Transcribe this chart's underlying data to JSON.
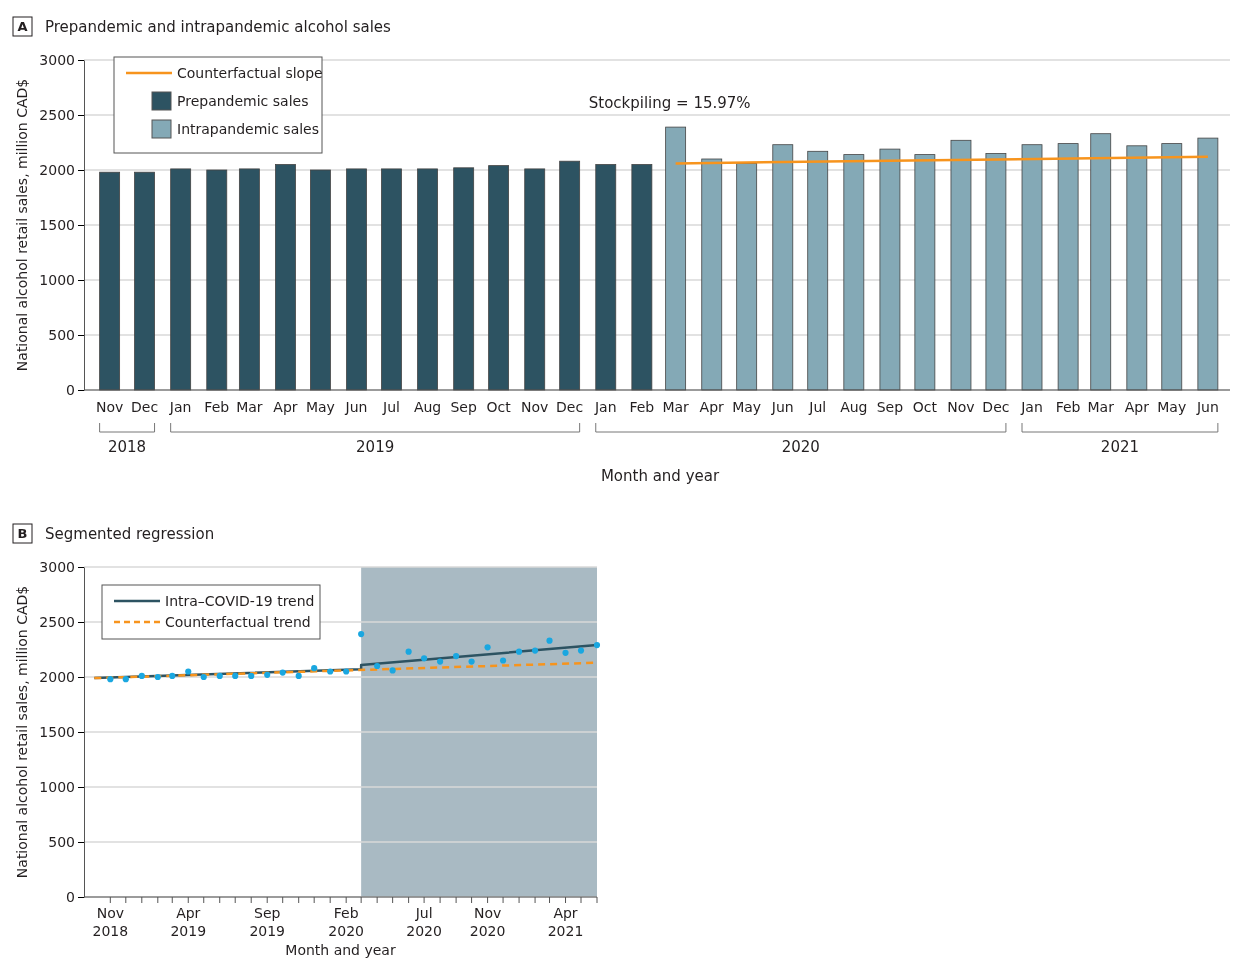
{
  "chart_data": [
    {
      "type": "bar",
      "title": "Prepandemic and intrapandemic alcohol sales",
      "xlabel": "Month and year",
      "ylabel": "National alcohol retail sales, million CAD$",
      "grid": "y",
      "legend": "top left",
      "x": [
        "2018-11",
        "2018-12",
        "2019-01",
        "2019-02",
        "2019-03",
        "2019-04",
        "2019-05",
        "2019-06",
        "2019-07",
        "2019-08",
        "2019-09",
        "2019-10",
        "2019-11",
        "2019-12",
        "2020-01",
        "2020-02",
        "2020-03",
        "2020-04",
        "2020-05",
        "2020-06",
        "2020-07",
        "2020-08",
        "2020-09",
        "2020-10",
        "2020-11",
        "2020-12",
        "2021-01",
        "2021-02",
        "2021-03",
        "2021-04",
        "2021-05",
        "2021-06"
      ],
      "xlim": [
        "2018-10-10",
        "2021-06-20"
      ],
      "xticks": [
        {
          "value": "2018-11",
          "label": "Nov"
        },
        {
          "value": "2018-12",
          "label": "Dec"
        },
        {
          "value": "2019-01",
          "label": "Jan"
        },
        {
          "value": "2019-02",
          "label": "Feb"
        },
        {
          "value": "2019-03",
          "label": "Mar"
        },
        {
          "value": "2019-04",
          "label": "Apr"
        },
        {
          "value": "2019-05",
          "label": "May"
        },
        {
          "value": "2019-06",
          "label": "Jun"
        },
        {
          "value": "2019-07",
          "label": "Jul"
        },
        {
          "value": "2019-08",
          "label": "Aug"
        },
        {
          "value": "2019-09",
          "label": "Sep"
        },
        {
          "value": "2019-10",
          "label": "Oct"
        },
        {
          "value": "2019-11",
          "label": "Nov"
        },
        {
          "value": "2019-12",
          "label": "Dec"
        },
        {
          "value": "2020-01",
          "label": "Jan"
        },
        {
          "value": "2020-02",
          "label": "Feb"
        },
        {
          "value": "2020-03",
          "label": "Mar"
        },
        {
          "value": "2020-04",
          "label": "Apr"
        },
        {
          "value": "2020-05",
          "label": "May"
        },
        {
          "value": "2020-06",
          "label": "Jun"
        },
        {
          "value": "2020-07",
          "label": "Jul"
        },
        {
          "value": "2020-08",
          "label": "Aug"
        },
        {
          "value": "2020-09",
          "label": "Sep"
        },
        {
          "value": "2020-10",
          "label": "Oct"
        },
        {
          "value": "2020-11",
          "label": "Nov"
        },
        {
          "value": "2020-12",
          "label": "Dec"
        },
        {
          "value": "2021-01",
          "label": "Jan"
        },
        {
          "value": "2021-02",
          "label": "Feb"
        },
        {
          "value": "2021-03",
          "label": "Mar"
        },
        {
          "value": "2021-04",
          "label": "Apr"
        },
        {
          "value": "2021-05",
          "label": "May"
        },
        {
          "value": "2021-06",
          "label": "Jun"
        }
      ],
      "ylim": [
        0,
        3000
      ],
      "yticks": [
        0,
        500,
        1000,
        1500,
        2000,
        2500,
        3000
      ],
      "annotations": [
        "A",
        {
          "text": "Stockpiling = 15.97%",
          "x": "2020-03",
          "y": 2390
        },
        "2018",
        "2019",
        "2020",
        "2021"
      ],
      "series": [
        {
          "name": "Counterfactual slope",
          "type": "line",
          "color": "#f7941d",
          "x": [
            "2020-03",
            "2021-06"
          ],
          "values": [
            2060,
            2120
          ]
        },
        {
          "name": "Prepandemic sales",
          "type": "bar",
          "color": "#2d5362",
          "values": [
            1980,
            1980,
            2010,
            2000,
            2010,
            2050,
            2000,
            2010,
            2010,
            2010,
            2020,
            2040,
            2010,
            2080,
            2050,
            2050,
            null,
            null,
            null,
            null,
            null,
            null,
            null,
            null,
            null,
            null,
            null,
            null,
            null,
            null,
            null,
            null
          ]
        },
        {
          "name": "Intrapandemic sales",
          "type": "bar",
          "color": "#84a9b6",
          "values": [
            null,
            null,
            null,
            null,
            null,
            null,
            null,
            null,
            null,
            null,
            null,
            null,
            null,
            null,
            null,
            null,
            2390,
            2100,
            2060,
            2230,
            2170,
            2140,
            2190,
            2140,
            2270,
            2150,
            2230,
            2240,
            2330,
            2220,
            2240,
            2290
          ]
        }
      ]
    },
    {
      "type": "line",
      "title": "Segmented regression",
      "xlabel": "Month and year",
      "ylabel": "National alcohol retail sales, million CAD$",
      "grid": "y",
      "legend": "top left",
      "xlim": [
        "2018-09-11",
        "2021-06"
      ],
      "xticks": [
        {
          "value": "2018-11",
          "label": "Nov 2018"
        },
        {
          "value": "2018-12",
          "label": null
        },
        {
          "value": "2019-01",
          "label": null
        },
        {
          "value": "2019-02",
          "label": null
        },
        {
          "value": "2019-03",
          "label": null
        },
        {
          "value": "2019-04",
          "label": "Apr 2019"
        },
        {
          "value": "2019-05",
          "label": null
        },
        {
          "value": "2019-06",
          "label": null
        },
        {
          "value": "2019-07",
          "label": null
        },
        {
          "value": "2019-08",
          "label": null
        },
        {
          "value": "2019-09",
          "label": "Sep 2019"
        },
        {
          "value": "2019-10",
          "label": null
        },
        {
          "value": "2019-11",
          "label": null
        },
        {
          "value": "2019-12",
          "label": null
        },
        {
          "value": "2020-01",
          "label": null
        },
        {
          "value": "2020-02",
          "label": "Feb 2020"
        },
        {
          "value": "2020-03",
          "label": null
        },
        {
          "value": "2020-04",
          "label": null
        },
        {
          "value": "2020-05",
          "label": null
        },
        {
          "value": "2020-06",
          "label": null
        },
        {
          "value": "2020-07",
          "label": "Jul 2020"
        },
        {
          "value": "2020-08",
          "label": null
        },
        {
          "value": "2020-09",
          "label": null
        },
        {
          "value": "2020-10",
          "label": null
        },
        {
          "value": "2020-11",
          "label": "Nov 2020"
        },
        {
          "value": "2020-12",
          "label": null
        },
        {
          "value": "2021-01",
          "label": null
        },
        {
          "value": "2021-02",
          "label": null
        },
        {
          "value": "2021-03",
          "label": null
        },
        {
          "value": "2021-04",
          "label": "Apr 2021"
        },
        {
          "value": "2021-05",
          "label": null
        },
        {
          "value": "2021-06",
          "label": null
        }
      ],
      "ylim": [
        0,
        3000
      ],
      "yticks": [
        0,
        500,
        1000,
        1500,
        2000,
        2500,
        3000
      ],
      "annotations": [
        "B"
      ],
      "bands": [
        {
          "axis": "x",
          "from": "2020-03",
          "to": "2021-06",
          "color": "#a9bac3"
        }
      ],
      "series": [
        {
          "type": "scatter",
          "color": "#1aa7e0",
          "marker": "circle",
          "x": [
            "2018-11",
            "2018-12",
            "2019-01",
            "2019-02",
            "2019-03",
            "2019-04",
            "2019-05",
            "2019-06",
            "2019-07",
            "2019-08",
            "2019-09",
            "2019-10",
            "2019-11",
            "2019-12",
            "2020-01",
            "2020-02",
            "2020-03",
            "2020-04",
            "2020-05",
            "2020-06",
            "2020-07",
            "2020-08",
            "2020-09",
            "2020-10",
            "2020-11",
            "2020-12",
            "2021-01",
            "2021-02",
            "2021-03",
            "2021-04",
            "2021-05",
            "2021-06"
          ],
          "values": [
            1980,
            1980,
            2010,
            2000,
            2010,
            2050,
            2000,
            2010,
            2010,
            2010,
            2020,
            2040,
            2010,
            2080,
            2050,
            2050,
            2390,
            2100,
            2060,
            2230,
            2170,
            2140,
            2190,
            2140,
            2270,
            2150,
            2230,
            2240,
            2330,
            2220,
            2240,
            2290
          ]
        },
        {
          "name": "Intra–COVID-19 trend",
          "type": "line",
          "color": "#2d5362",
          "line_style": "solid",
          "x": [
            "2018-10",
            "2020-03",
            "2020-03",
            "2021-06"
          ],
          "values": [
            1990,
            2070,
            2110,
            2290
          ]
        },
        {
          "name": "Counterfactual trend",
          "type": "line",
          "color": "#f7941d",
          "line_style": "dashed",
          "x": [
            "2018-10",
            "2021-06"
          ],
          "values": [
            1990,
            2130
          ]
        }
      ]
    }
  ]
}
